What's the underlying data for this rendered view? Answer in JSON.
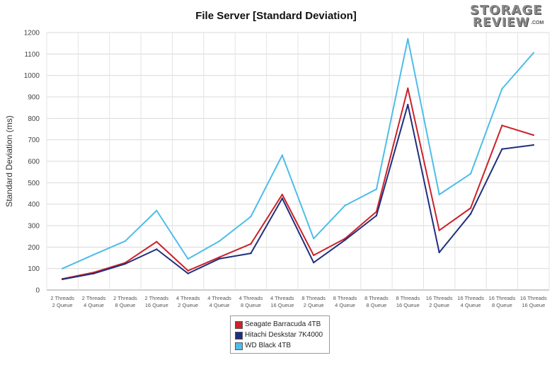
{
  "chart_data": {
    "type": "line",
    "title": "File Server [Standard Deviation]",
    "xlabel": "",
    "ylabel": "Standard Deviation (ms)",
    "ylim": [
      0,
      1200
    ],
    "yticks": [
      0,
      100,
      200,
      300,
      400,
      500,
      600,
      700,
      800,
      900,
      1000,
      1100,
      1200
    ],
    "grid": true,
    "legend_position": "bottom",
    "categories": [
      [
        "2 Threads",
        "2 Queue"
      ],
      [
        "2 Threads",
        "4 Queue"
      ],
      [
        "2 Threads",
        "8 Queue"
      ],
      [
        "2 Threads",
        "16 Queue"
      ],
      [
        "4 Threads",
        "2 Queue"
      ],
      [
        "4 Threads",
        "4 Queue"
      ],
      [
        "4 Threads",
        "8 Queue"
      ],
      [
        "4 Threads",
        "16 Queue"
      ],
      [
        "8 Threads",
        "2 Queue"
      ],
      [
        "8 Threads",
        "4 Queue"
      ],
      [
        "8 Threads",
        "8 Queue"
      ],
      [
        "8 Threads",
        "16 Queue"
      ],
      [
        "16 Threads",
        "2 Queue"
      ],
      [
        "16 Threads",
        "4 Queue"
      ],
      [
        "16 Threads",
        "8 Queue"
      ],
      [
        "16 Threads",
        "16 Queue"
      ]
    ],
    "series": [
      {
        "name": "Seagate Barracuda 4TB",
        "color": "#cc2229",
        "values": [
          52,
          82,
          127,
          225,
          90,
          153,
          215,
          445,
          162,
          240,
          365,
          940,
          278,
          382,
          767,
          722
        ]
      },
      {
        "name": "Hitachi Deskstar 7K4000",
        "color": "#1f2f7e",
        "values": [
          50,
          77,
          122,
          190,
          77,
          146,
          171,
          427,
          128,
          233,
          347,
          864,
          175,
          355,
          657,
          676
        ]
      },
      {
        "name": "WD Black 4TB",
        "color": "#4dbde9",
        "values": [
          100,
          165,
          228,
          370,
          145,
          228,
          342,
          628,
          240,
          394,
          470,
          1170,
          445,
          542,
          938,
          1105
        ]
      }
    ]
  },
  "logo": {
    "line1": "STORAGE",
    "line2": "REVIEW",
    "line3": ".COM"
  }
}
